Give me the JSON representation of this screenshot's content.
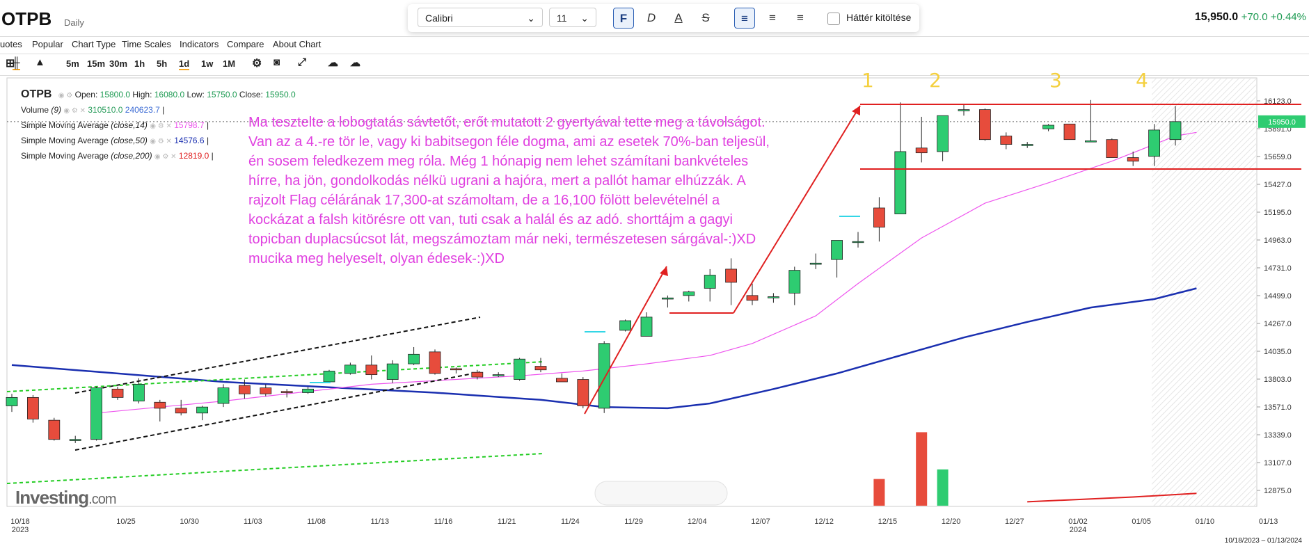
{
  "header": {
    "symbol": "OTPB",
    "timeframe": "Daily",
    "last_price": "15,950.0",
    "change": "+70.0 +0.44%"
  },
  "format_bar": {
    "font": "Calibri",
    "size": "11",
    "bold": "F",
    "italic": "D",
    "color_a": "A",
    "strike": "S",
    "bg_fill_label": "Háttér kitöltése"
  },
  "menu": [
    "uotes",
    "Popular",
    "Chart Type",
    "Time Scales",
    "Indicators",
    "Compare",
    "About Chart"
  ],
  "timeframes": [
    "5m",
    "15m",
    "30m",
    "1h",
    "5h",
    "1d",
    "1w",
    "1M"
  ],
  "legend": {
    "symbol": "OTPB",
    "open_label": "Open:",
    "open": "15800.0",
    "high_label": "High:",
    "high": "16080.0",
    "low_label": "Low:",
    "low": "15750.0",
    "close_label": "Close:",
    "close": "15950.0",
    "volume_label": "Volume",
    "volume_param": "(9)",
    "volume_value": "310510.0",
    "volume_ma": "240623.7",
    "sma14_label": "Simple Moving Average",
    "sma14_param": "(close,14)",
    "sma14_value": "15798.7",
    "sma50_label": "Simple Moving Average",
    "sma50_param": "(close,50)",
    "sma50_value": "14576.6",
    "sma200_label": "Simple Moving Average",
    "sma200_param": "(close,200)",
    "sma200_value": "12819.0"
  },
  "annotation_text": "Ma tesztelte a lobogtatás sávtetőt, erőt mutatott 2 gyertyával tette meg a távolságot. Van az a 4.-re tör le, vagy ki babitsegon féle dogma, ami az esetek 70%-ban teljesül, én sosem feledkezem meg róla. Még 1 hónapig nem lehet számítani bankvételes hírre, ha jön, gondolkodás nélkü ugrani a hajóra, mert a pallót hamar elhúzzák. A rajzolt Flag célárának 17,300-at számoltam, de a 16,100 fölött belevételnél a kockázat a falsh kitörésre ott van, tuti csak a halál és az adó. shorttájm a gagyi topicban duplacsúcsot lát, megszámoztam már neki, természetesen sárgával-:)XD mucika meg helyeselt, olyan édesek-:)XD",
  "top_marks": [
    "1",
    "2",
    "3",
    "4"
  ],
  "price_badge": "15950.0",
  "logo": {
    "main": "Investing",
    "suffix": ".com"
  },
  "date_range": "10/18/2023 – 01/13/2024",
  "colors": {
    "up": "#2ecc71",
    "down": "#e74c3c",
    "sma14": "#ee55ee",
    "sma50": "#1a2fb0",
    "sma200": "#e02020",
    "annotation": "#e040e0",
    "marks": "#f4d03f"
  },
  "chart_data": {
    "type": "candlestick",
    "y_ticks": [
      "16123.0",
      "15891.0",
      "15659.0",
      "15427.0",
      "15195.0",
      "14963.0",
      "14731.0",
      "14499.0",
      "14267.0",
      "14035.0",
      "13803.0",
      "13571.0",
      "13339.0",
      "13107.0",
      "12875.0"
    ],
    "ylim": [
      12700,
      16320
    ],
    "x_ticks": [
      {
        "label": "10/18",
        "sub": "2023",
        "i": 0
      },
      {
        "label": "10/25",
        "i": 5
      },
      {
        "label": "10/30",
        "i": 8
      },
      {
        "label": "11/03",
        "i": 11
      },
      {
        "label": "11/08",
        "i": 14
      },
      {
        "label": "11/13",
        "i": 17
      },
      {
        "label": "11/16",
        "i": 20
      },
      {
        "label": "11/21",
        "i": 23
      },
      {
        "label": "11/24",
        "i": 26
      },
      {
        "label": "11/29",
        "i": 29
      },
      {
        "label": "12/04",
        "i": 32
      },
      {
        "label": "12/07",
        "i": 35
      },
      {
        "label": "12/12",
        "i": 38
      },
      {
        "label": "12/15",
        "i": 41
      },
      {
        "label": "12/20",
        "i": 44
      },
      {
        "label": "12/27",
        "i": 47
      },
      {
        "label": "01/02",
        "sub": "2024",
        "i": 50
      },
      {
        "label": "01/05",
        "i": 53
      },
      {
        "label": "01/10",
        "i": 56
      },
      {
        "label": "01/13",
        "i": 59
      }
    ],
    "candles": [
      [
        13580,
        13680,
        13530,
        13650
      ],
      [
        13650,
        13670,
        13440,
        13470
      ],
      [
        13460,
        13480,
        13290,
        13300
      ],
      [
        13290,
        13330,
        13270,
        13300
      ],
      [
        13300,
        13740,
        13290,
        13730
      ],
      [
        13720,
        13740,
        13630,
        13650
      ],
      [
        13620,
        13810,
        13600,
        13760
      ],
      [
        13610,
        13630,
        13450,
        13560
      ],
      [
        13560,
        13630,
        13500,
        13520
      ],
      [
        13520,
        13580,
        13460,
        13570
      ],
      [
        13600,
        13760,
        13570,
        13730
      ],
      [
        13750,
        13800,
        13640,
        13680
      ],
      [
        13730,
        13760,
        13660,
        13680
      ],
      [
        13700,
        13720,
        13650,
        13690
      ],
      [
        13690,
        13740,
        13680,
        13720
      ],
      [
        13780,
        13880,
        13770,
        13870
      ],
      [
        13850,
        13940,
        13840,
        13920
      ],
      [
        13920,
        14000,
        13800,
        13840
      ],
      [
        13800,
        13960,
        13770,
        13930
      ],
      [
        13930,
        14070,
        13920,
        14010
      ],
      [
        14030,
        14050,
        13840,
        13850
      ],
      [
        13890,
        13900,
        13850,
        13880
      ],
      [
        13860,
        13880,
        13800,
        13820
      ],
      [
        13830,
        13860,
        13820,
        13840
      ],
      [
        13800,
        13980,
        13790,
        13970
      ],
      [
        13910,
        13980,
        13860,
        13880
      ],
      [
        13810,
        13850,
        13780,
        13780
      ],
      [
        13800,
        13820,
        13560,
        13580
      ],
      [
        13560,
        14120,
        13520,
        14100
      ],
      [
        14210,
        14300,
        14200,
        14290
      ],
      [
        14160,
        14360,
        14160,
        14320
      ],
      [
        14470,
        14500,
        14400,
        14480
      ],
      [
        14500,
        14540,
        14450,
        14530
      ],
      [
        14560,
        14720,
        14450,
        14670
      ],
      [
        14720,
        14810,
        14420,
        14610
      ],
      [
        14500,
        14600,
        14420,
        14460
      ],
      [
        14480,
        14520,
        14440,
        14490
      ],
      [
        14520,
        14740,
        14420,
        14710
      ],
      [
        14760,
        14850,
        14720,
        14770
      ],
      [
        14800,
        14960,
        14650,
        14960
      ],
      [
        14950,
        15030,
        14900,
        14950
      ],
      [
        15230,
        15320,
        14950,
        15070
      ],
      [
        15180,
        16110,
        15180,
        15700
      ],
      [
        15730,
        15990,
        15610,
        15690
      ],
      [
        15700,
        16000,
        15620,
        16000
      ],
      [
        16040,
        16100,
        16000,
        16050
      ],
      [
        16050,
        16060,
        15790,
        15800
      ],
      [
        15830,
        15860,
        15720,
        15760
      ],
      [
        15750,
        15780,
        15730,
        15760
      ],
      [
        15890,
        15930,
        15870,
        15920
      ],
      [
        15930,
        15920,
        15830,
        15800
      ],
      [
        15780,
        16130,
        15780,
        15790
      ],
      [
        15800,
        15810,
        15650,
        15650
      ],
      [
        15650,
        15700,
        15580,
        15620
      ],
      [
        15660,
        15930,
        15580,
        15880
      ],
      [
        15800,
        16080,
        15750,
        15950
      ]
    ],
    "volume_shown": [
      [
        41,
        12970
      ],
      [
        43,
        13360
      ],
      [
        44,
        13050
      ]
    ],
    "sma50": [
      [
        0,
        13920
      ],
      [
        10,
        13780
      ],
      [
        20,
        13690
      ],
      [
        25,
        13630
      ],
      [
        28,
        13570
      ],
      [
        31,
        13560
      ],
      [
        33,
        13600
      ],
      [
        36,
        13720
      ],
      [
        39,
        13850
      ],
      [
        42,
        14000
      ],
      [
        45,
        14150
      ],
      [
        48,
        14280
      ],
      [
        51,
        14400
      ],
      [
        54,
        14470
      ],
      [
        56,
        14560
      ]
    ],
    "sma14": [
      [
        4,
        13520
      ],
      [
        10,
        13620
      ],
      [
        17,
        13760
      ],
      [
        24,
        13830
      ],
      [
        27,
        13870
      ],
      [
        30,
        13930
      ],
      [
        33,
        14000
      ],
      [
        35,
        14100
      ],
      [
        38,
        14330
      ],
      [
        40,
        14600
      ],
      [
        43,
        14980
      ],
      [
        46,
        15270
      ],
      [
        49,
        15440
      ],
      [
        52,
        15620
      ],
      [
        55,
        15830
      ],
      [
        56,
        15860
      ]
    ],
    "sma200": [
      [
        48,
        12780
      ],
      [
        53,
        12820
      ],
      [
        56,
        12850
      ]
    ]
  }
}
